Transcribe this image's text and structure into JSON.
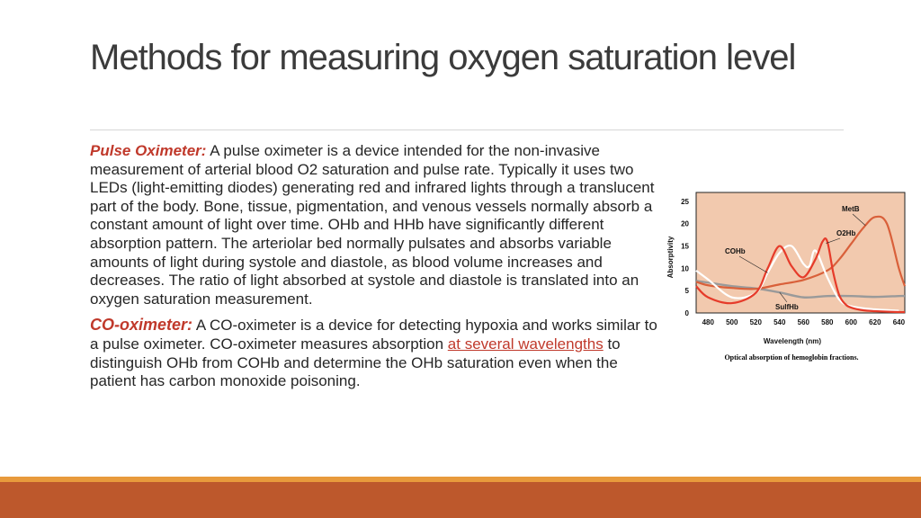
{
  "slide": {
    "title": "Methods for measuring oxygen saturation level"
  },
  "pulse_oximeter": {
    "term": "Pulse Oximeter:",
    "text": " A pulse oximeter is a device intended for the non-invasive measurement of arterial blood O2 saturation and pulse rate. Typically it uses two LEDs (light-emitting diodes) generating red and infrared lights through a translucent part of the body. Bone, tissue, pigmentation, and venous vessels normally absorb a constant amount of light over time. OHb and HHb have significantly different absorption pattern. The arteriolar bed normally pulsates and absorbs variable amounts of light during systole and diastole, as blood volume increases and decreases. The ratio of light absorbed at systole and diastole is translated into an oxygen saturation measurement."
  },
  "co_oximeter": {
    "term": "CO-oximeter:",
    "text_before": " A CO-oximeter is a device for detecting hypoxia and works similar to a pulse oximeter. CO-oximeter measures absorption ",
    "link_text": "at several wavelengths",
    "text_after": " to distinguish OHb from COHb and determine the OHb saturation even when the patient has carbon monoxide poisoning."
  },
  "figure": {
    "caption": "Optical absorption of hemoglobin fractions.",
    "colors": {
      "plot_bg": "#f2c9ae",
      "ohb": "#e63b2a",
      "methb": "#d9603a",
      "cohb": "#ffffff",
      "sulfhb": "#9a9a9a"
    },
    "chart_data": {
      "type": "line",
      "xlabel": "Wavelength (nm)",
      "ylabel": "Absorptivity",
      "xlim": [
        470,
        645
      ],
      "ylim": [
        0,
        27
      ],
      "x_ticks": [
        480,
        500,
        520,
        540,
        560,
        580,
        600,
        620,
        640
      ],
      "y_ticks": [
        0,
        5,
        10,
        15,
        20,
        25
      ],
      "grid": false,
      "series": [
        {
          "name": "MetB",
          "x": [
            470,
            480,
            500,
            520,
            540,
            560,
            580,
            590,
            600,
            610,
            620,
            630,
            640,
            645
          ],
          "y": [
            7,
            6.2,
            5.6,
            5.4,
            6.4,
            7.4,
            9.5,
            12,
            15.5,
            19,
            21.5,
            20,
            10,
            6
          ]
        },
        {
          "name": "O2Hb",
          "x": [
            470,
            480,
            500,
            520,
            530,
            540,
            550,
            560,
            570,
            576,
            580,
            585,
            590,
            595,
            600,
            610,
            620,
            640,
            645
          ],
          "y": [
            6,
            3.5,
            2.2,
            4.5,
            10,
            15,
            10.5,
            8,
            12,
            16,
            16,
            9,
            4,
            2,
            1.2,
            0.6,
            0.4,
            0.2,
            0.2
          ]
        },
        {
          "name": "COHb",
          "x": [
            470,
            480,
            500,
            520,
            530,
            540,
            550,
            560,
            565,
            570,
            580,
            590,
            600,
            620,
            640
          ],
          "y": [
            9.5,
            7.5,
            3.5,
            4.5,
            9,
            13.5,
            15,
            11,
            10.5,
            14,
            8,
            3,
            1.5,
            0.8,
            0.5
          ]
        },
        {
          "name": "SulfHb",
          "x": [
            470,
            480,
            500,
            520,
            540,
            560,
            580,
            600,
            620,
            640,
            645
          ],
          "y": [
            7.2,
            6.8,
            6,
            5.5,
            4.6,
            3.5,
            3.8,
            3.8,
            3.6,
            3.8,
            3.8
          ]
        }
      ]
    }
  }
}
